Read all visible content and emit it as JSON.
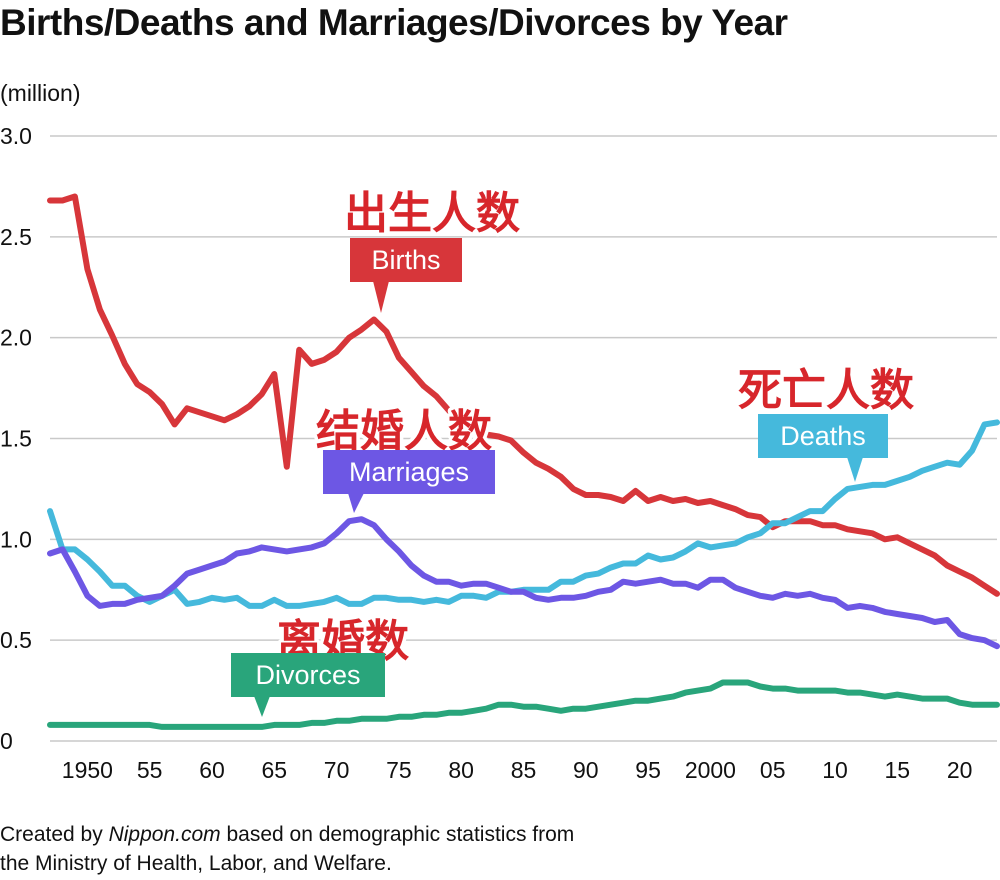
{
  "title": "Births/Deaths and Marriages/Divorces by Year",
  "footer": {
    "prefix": "Created by ",
    "source_name": "Nippon.com",
    "suffix": " based on demographic statistics from",
    "line2": "the Ministry of Health, Labor, and Welfare."
  },
  "chart_data": {
    "type": "line",
    "title": "Births/Deaths and Marriages/Divorces by Year",
    "ylabel": "(million)",
    "xlim": [
      1947,
      2023
    ],
    "ylim": [
      0,
      3.0
    ],
    "yticks": [
      {
        "value": 0,
        "label": "0"
      },
      {
        "value": 0.5,
        "label": "0.5"
      },
      {
        "value": 1.0,
        "label": "1.0"
      },
      {
        "value": 1.5,
        "label": "1.5"
      },
      {
        "value": 2.0,
        "label": "2.0"
      },
      {
        "value": 2.5,
        "label": "2.5"
      },
      {
        "value": 3.0,
        "label": "3.0"
      }
    ],
    "xticks": [
      {
        "value": 1950,
        "label": "1950"
      },
      {
        "value": 1955,
        "label": "55"
      },
      {
        "value": 1960,
        "label": "60"
      },
      {
        "value": 1965,
        "label": "65"
      },
      {
        "value": 1970,
        "label": "70"
      },
      {
        "value": 1975,
        "label": "75"
      },
      {
        "value": 1980,
        "label": "80"
      },
      {
        "value": 1985,
        "label": "85"
      },
      {
        "value": 1990,
        "label": "90"
      },
      {
        "value": 1995,
        "label": "95"
      },
      {
        "value": 2000,
        "label": "2000"
      },
      {
        "value": 2005,
        "label": "05"
      },
      {
        "value": 2010,
        "label": "10"
      },
      {
        "value": 2015,
        "label": "15"
      },
      {
        "value": 2020,
        "label": "20"
      }
    ],
    "grid": true,
    "years": [
      1947,
      1948,
      1949,
      1950,
      1951,
      1952,
      1953,
      1954,
      1955,
      1956,
      1957,
      1958,
      1959,
      1960,
      1961,
      1962,
      1963,
      1964,
      1965,
      1966,
      1967,
      1968,
      1969,
      1970,
      1971,
      1972,
      1973,
      1974,
      1975,
      1976,
      1977,
      1978,
      1979,
      1980,
      1981,
      1982,
      1983,
      1984,
      1985,
      1986,
      1987,
      1988,
      1989,
      1990,
      1991,
      1992,
      1993,
      1994,
      1995,
      1996,
      1997,
      1998,
      1999,
      2000,
      2001,
      2002,
      2003,
      2004,
      2005,
      2006,
      2007,
      2008,
      2009,
      2010,
      2011,
      2012,
      2013,
      2014,
      2015,
      2016,
      2017,
      2018,
      2019,
      2020,
      2021,
      2022,
      2023
    ],
    "series": [
      {
        "key": "births",
        "name": "Births",
        "jp_label": "出生人数",
        "color": "#d7363a",
        "label_color": "#d7363a",
        "values": [
          2.68,
          2.68,
          2.7,
          2.34,
          2.14,
          2.01,
          1.87,
          1.77,
          1.73,
          1.67,
          1.57,
          1.65,
          1.63,
          1.61,
          1.59,
          1.62,
          1.66,
          1.72,
          1.82,
          1.36,
          1.94,
          1.87,
          1.89,
          1.93,
          2.0,
          2.04,
          2.09,
          2.03,
          1.9,
          1.83,
          1.76,
          1.71,
          1.64,
          1.58,
          1.53,
          1.52,
          1.51,
          1.49,
          1.43,
          1.38,
          1.35,
          1.31,
          1.25,
          1.22,
          1.22,
          1.21,
          1.19,
          1.24,
          1.19,
          1.21,
          1.19,
          1.2,
          1.18,
          1.19,
          1.17,
          1.15,
          1.12,
          1.11,
          1.06,
          1.09,
          1.09,
          1.09,
          1.07,
          1.07,
          1.05,
          1.04,
          1.03,
          1.0,
          1.01,
          0.98,
          0.95,
          0.92,
          0.87,
          0.84,
          0.81,
          0.77,
          0.73
        ]
      },
      {
        "key": "deaths",
        "name": "Deaths",
        "jp_label": "死亡人数",
        "color": "#45b9dc",
        "label_color": "#45b9dc",
        "values": [
          1.14,
          0.95,
          0.95,
          0.9,
          0.84,
          0.77,
          0.77,
          0.72,
          0.69,
          0.72,
          0.75,
          0.68,
          0.69,
          0.71,
          0.7,
          0.71,
          0.67,
          0.67,
          0.7,
          0.67,
          0.67,
          0.68,
          0.69,
          0.71,
          0.68,
          0.68,
          0.71,
          0.71,
          0.7,
          0.7,
          0.69,
          0.7,
          0.69,
          0.72,
          0.72,
          0.71,
          0.74,
          0.74,
          0.75,
          0.75,
          0.75,
          0.79,
          0.79,
          0.82,
          0.83,
          0.86,
          0.88,
          0.88,
          0.92,
          0.9,
          0.91,
          0.94,
          0.98,
          0.96,
          0.97,
          0.98,
          1.01,
          1.03,
          1.08,
          1.08,
          1.11,
          1.14,
          1.14,
          1.2,
          1.25,
          1.26,
          1.27,
          1.27,
          1.29,
          1.31,
          1.34,
          1.36,
          1.38,
          1.37,
          1.44,
          1.57,
          1.58
        ]
      },
      {
        "key": "marriages",
        "name": "Marriages",
        "jp_label": "结婚人数",
        "color": "#6d57e4",
        "label_color": "#6d57e4",
        "values": [
          0.93,
          0.95,
          0.84,
          0.72,
          0.67,
          0.68,
          0.68,
          0.7,
          0.71,
          0.72,
          0.77,
          0.83,
          0.85,
          0.87,
          0.89,
          0.93,
          0.94,
          0.96,
          0.95,
          0.94,
          0.95,
          0.96,
          0.98,
          1.03,
          1.09,
          1.1,
          1.07,
          1.0,
          0.94,
          0.87,
          0.82,
          0.79,
          0.79,
          0.77,
          0.78,
          0.78,
          0.76,
          0.74,
          0.74,
          0.71,
          0.7,
          0.71,
          0.71,
          0.72,
          0.74,
          0.75,
          0.79,
          0.78,
          0.79,
          0.8,
          0.78,
          0.78,
          0.76,
          0.8,
          0.8,
          0.76,
          0.74,
          0.72,
          0.71,
          0.73,
          0.72,
          0.73,
          0.71,
          0.7,
          0.66,
          0.67,
          0.66,
          0.64,
          0.63,
          0.62,
          0.61,
          0.59,
          0.6,
          0.53,
          0.51,
          0.5,
          0.47
        ]
      },
      {
        "key": "divorces",
        "name": "Divorces",
        "jp_label": "离婚数",
        "color": "#29a57b",
        "label_color": "#29a57b",
        "values": [
          0.08,
          0.08,
          0.08,
          0.08,
          0.08,
          0.08,
          0.08,
          0.08,
          0.08,
          0.07,
          0.07,
          0.07,
          0.07,
          0.07,
          0.07,
          0.07,
          0.07,
          0.07,
          0.08,
          0.08,
          0.08,
          0.09,
          0.09,
          0.1,
          0.1,
          0.11,
          0.11,
          0.11,
          0.12,
          0.12,
          0.13,
          0.13,
          0.14,
          0.14,
          0.15,
          0.16,
          0.18,
          0.18,
          0.17,
          0.17,
          0.16,
          0.15,
          0.16,
          0.16,
          0.17,
          0.18,
          0.19,
          0.2,
          0.2,
          0.21,
          0.22,
          0.24,
          0.25,
          0.26,
          0.29,
          0.29,
          0.29,
          0.27,
          0.26,
          0.26,
          0.25,
          0.25,
          0.25,
          0.25,
          0.24,
          0.24,
          0.23,
          0.22,
          0.23,
          0.22,
          0.21,
          0.21,
          0.21,
          0.19,
          0.18,
          0.18,
          0.18
        ]
      }
    ]
  }
}
